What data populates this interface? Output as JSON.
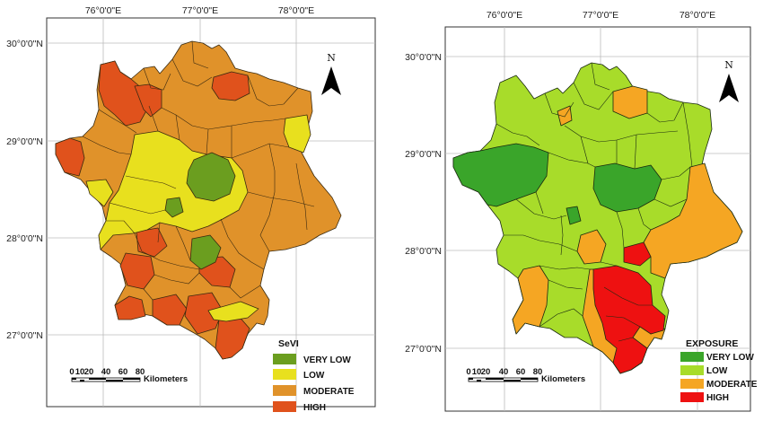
{
  "maps": [
    {
      "id": "sevi",
      "legend_title": "SeVI",
      "longitude_labels": [
        "76°0'0\"E",
        "77°0'0\"E",
        "78°0'0\"E"
      ],
      "latitude_labels": [
        "30°0'0\"N",
        "29°0'0\"N",
        "28°0'0\"N",
        "27°0'0\"N"
      ],
      "legend": [
        {
          "label": "VERY LOW",
          "color": "#6b9e1f"
        },
        {
          "label": "LOW",
          "color": "#e8e01e"
        },
        {
          "label": "MODERATE",
          "color": "#e0922a"
        },
        {
          "label": "HIGH",
          "color": "#e0521c"
        }
      ],
      "scale_bar": {
        "ticks": [
          "0",
          "10",
          "20",
          "40",
          "60",
          "80"
        ],
        "unit": "Kilometers"
      },
      "north_label": "N"
    },
    {
      "id": "exposure",
      "legend_title": "EXPOSURE",
      "longitude_labels": [
        "76°0'0\"E",
        "77°0'0\"E",
        "78°0'0\"E"
      ],
      "latitude_labels": [
        "30°0'0\"N",
        "29°0'0\"N",
        "28°0'0\"N",
        "27°0'0\"N"
      ],
      "legend": [
        {
          "label": "VERY LOW",
          "color": "#3aa52a"
        },
        {
          "label": "LOW",
          "color": "#a8dc2a"
        },
        {
          "label": "MODERATE",
          "color": "#f5a623"
        },
        {
          "label": "HIGH",
          "color": "#ee1111"
        }
      ],
      "scale_bar": {
        "ticks": [
          "0",
          "10",
          "20",
          "40",
          "60",
          "80"
        ],
        "unit": "Kilometers"
      },
      "north_label": "N"
    }
  ]
}
